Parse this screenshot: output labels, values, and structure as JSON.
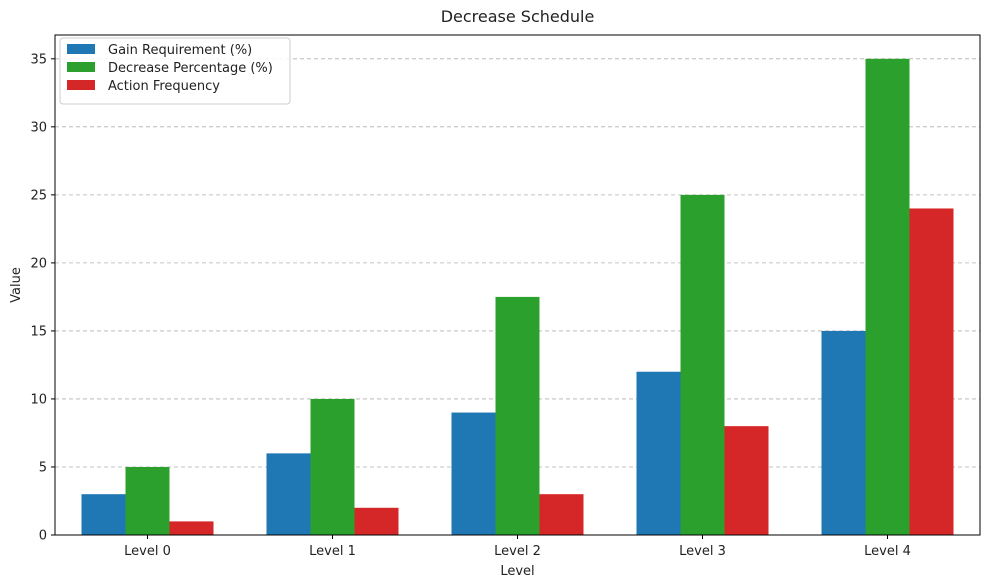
{
  "chart_data": {
    "type": "bar",
    "title": "Decrease Schedule",
    "xlabel": "Level",
    "ylabel": "Value",
    "categories": [
      "Level 0",
      "Level 1",
      "Level 2",
      "Level 3",
      "Level 4"
    ],
    "series": [
      {
        "name": "Gain Requirement (%)",
        "color": "#1f77b4",
        "values": [
          3,
          6,
          9,
          12,
          15
        ]
      },
      {
        "name": "Decrease Percentage (%)",
        "color": "#2ca02c",
        "values": [
          5,
          10,
          17.5,
          25,
          35
        ]
      },
      {
        "name": "Action Frequency",
        "color": "#d62728",
        "values": [
          1,
          2,
          3,
          8,
          24
        ]
      }
    ],
    "ylim": [
      0,
      36.75
    ],
    "yticks": [
      "0",
      "5",
      "10",
      "15",
      "20",
      "25",
      "30",
      "35"
    ],
    "grid": "horizontal dashed",
    "legend_position": "top-left"
  }
}
